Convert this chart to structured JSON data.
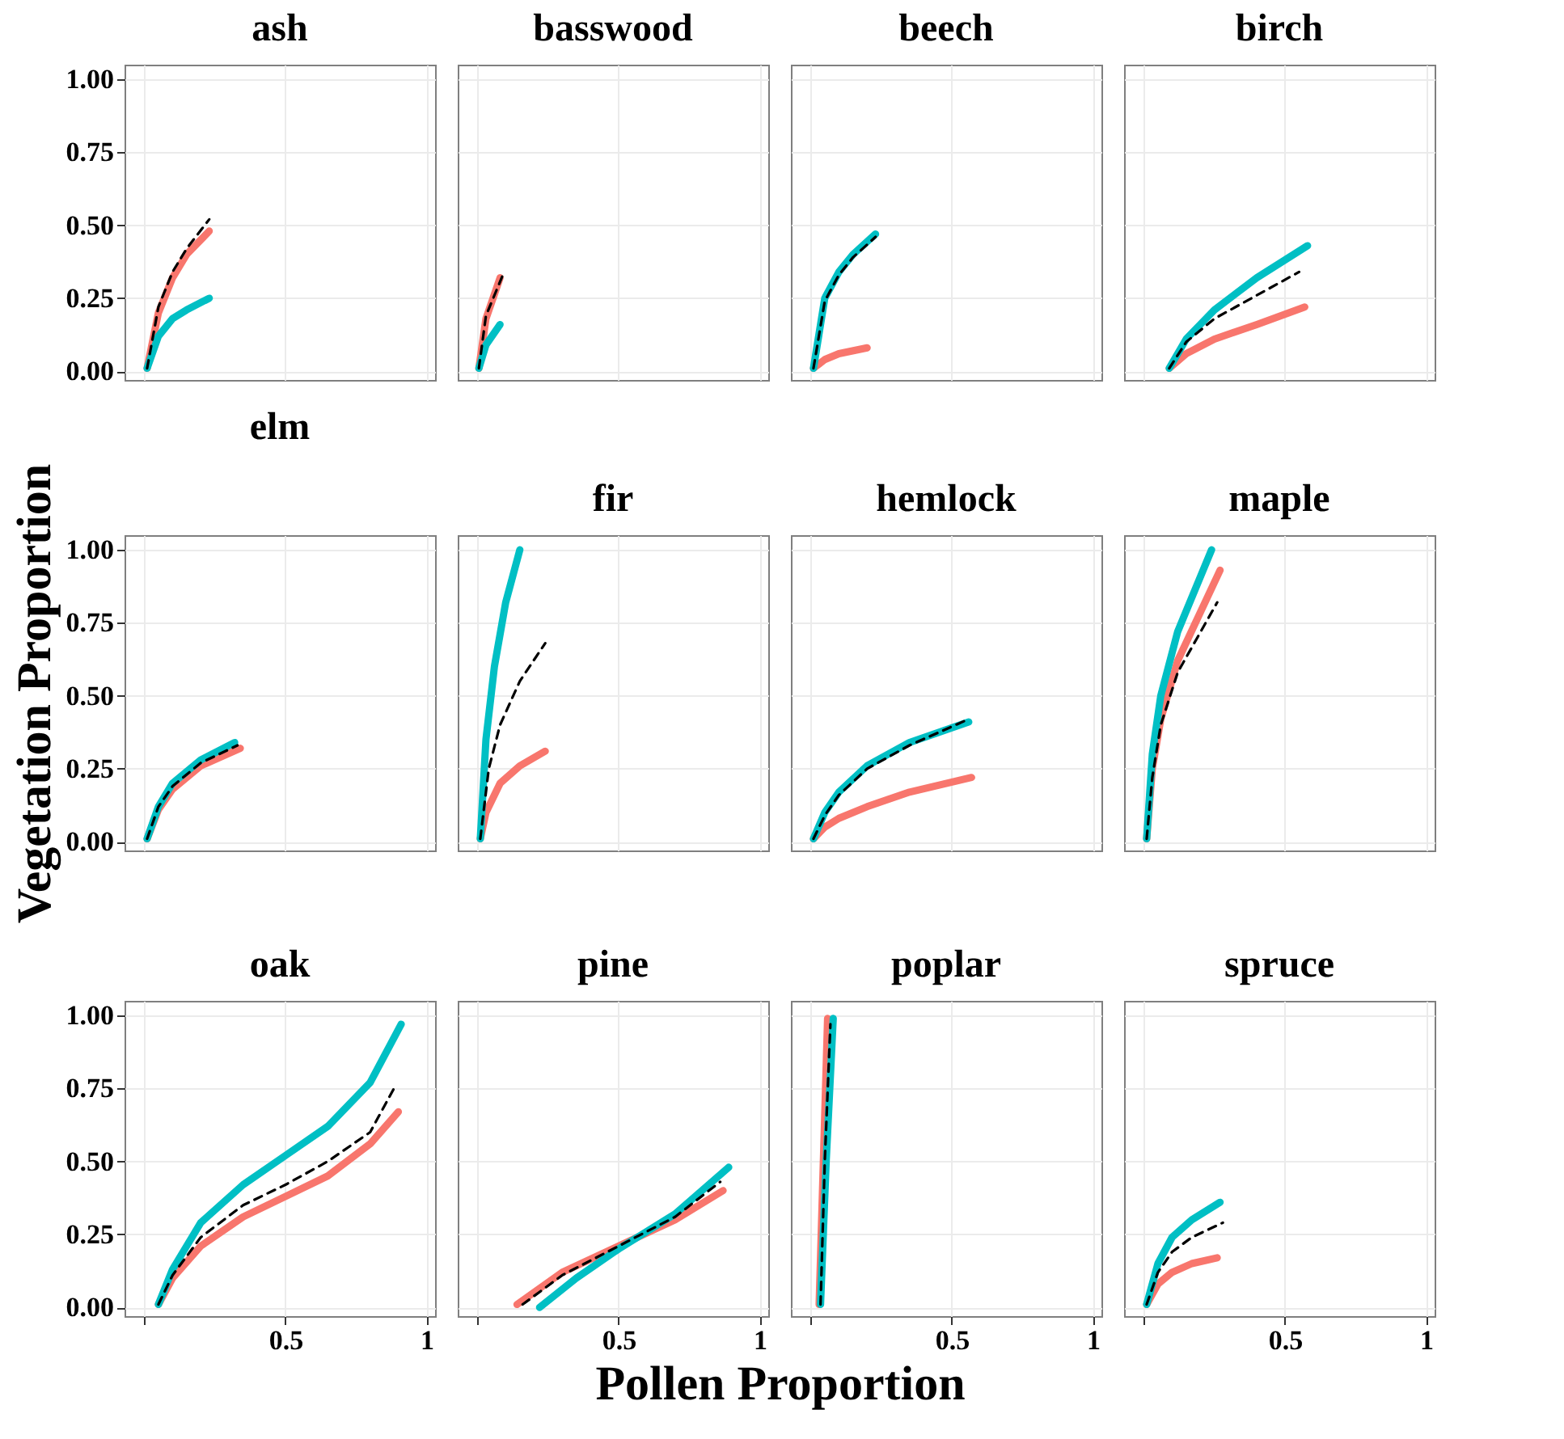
{
  "chart_data": [
    {
      "type": "line",
      "title": "ash",
      "xlim": [
        -0.07,
        1.03
      ],
      "ylim": [
        -0.03,
        1.05
      ],
      "xticks": [
        {
          "value": 0,
          "label": null
        },
        {
          "value": 0.5,
          "label": null
        },
        {
          "value": 1,
          "label": null
        }
      ],
      "yticks": [
        {
          "value": 0,
          "label": "0.00"
        },
        {
          "value": 0.25,
          "label": "0.25"
        },
        {
          "value": 0.5,
          "label": "0.50"
        },
        {
          "value": 0.75,
          "label": "0.75"
        },
        {
          "value": 1,
          "label": "1.00"
        }
      ],
      "grid": true,
      "tick_labels": "y",
      "series": [
        {
          "color": "#f8766d",
          "x": [
            0.01,
            0.05,
            0.1,
            0.15,
            0.23
          ],
          "values": [
            0.01,
            0.2,
            0.32,
            0.4,
            0.48
          ]
        },
        {
          "color": "#00bfc4",
          "x": [
            0.01,
            0.05,
            0.1,
            0.15,
            0.23
          ],
          "values": [
            0.01,
            0.12,
            0.18,
            0.21,
            0.25
          ]
        },
        {
          "color": "#000000",
          "line_style": "dashed",
          "x": [
            0.01,
            0.05,
            0.1,
            0.15,
            0.23
          ],
          "values": [
            0.01,
            0.22,
            0.34,
            0.42,
            0.52
          ]
        }
      ]
    },
    {
      "type": "line",
      "title": "basswood",
      "xlim": [
        -0.07,
        1.03
      ],
      "ylim": [
        -0.03,
        1.05
      ],
      "xticks": [
        {
          "value": 0,
          "label": null
        },
        {
          "value": 0.5,
          "label": null
        },
        {
          "value": 1,
          "label": null
        }
      ],
      "yticks": [
        {
          "value": 0,
          "label": null
        },
        {
          "value": 0.25,
          "label": null
        },
        {
          "value": 0.5,
          "label": null
        },
        {
          "value": 0.75,
          "label": null
        },
        {
          "value": 1,
          "label": null
        }
      ],
      "grid": true,
      "tick_labels": false,
      "series": [
        {
          "color": "#f8766d",
          "x": [
            0.005,
            0.03,
            0.08
          ],
          "values": [
            0.01,
            0.18,
            0.32
          ]
        },
        {
          "color": "#00bfc4",
          "x": [
            0.005,
            0.03,
            0.08
          ],
          "values": [
            0.01,
            0.09,
            0.16
          ]
        },
        {
          "color": "#000000",
          "line_style": "dashed",
          "x": [
            0.005,
            0.03,
            0.09
          ],
          "values": [
            0.01,
            0.19,
            0.33
          ]
        }
      ]
    },
    {
      "type": "line",
      "title": "beech",
      "xlim": [
        -0.07,
        1.03
      ],
      "ylim": [
        -0.03,
        1.05
      ],
      "xticks": [
        {
          "value": 0,
          "label": null
        },
        {
          "value": 0.5,
          "label": null
        },
        {
          "value": 1,
          "label": null
        }
      ],
      "yticks": [
        {
          "value": 0,
          "label": null
        },
        {
          "value": 0.25,
          "label": null
        },
        {
          "value": 0.5,
          "label": null
        },
        {
          "value": 0.75,
          "label": null
        },
        {
          "value": 1,
          "label": null
        }
      ],
      "grid": true,
      "tick_labels": false,
      "series": [
        {
          "color": "#f8766d",
          "x": [
            0.01,
            0.05,
            0.1,
            0.2
          ],
          "values": [
            0.01,
            0.04,
            0.06,
            0.08
          ]
        },
        {
          "color": "#00bfc4",
          "x": [
            0.01,
            0.05,
            0.1,
            0.15,
            0.23
          ],
          "values": [
            0.01,
            0.25,
            0.34,
            0.4,
            0.47
          ]
        },
        {
          "color": "#000000",
          "line_style": "dashed",
          "x": [
            0.01,
            0.05,
            0.1,
            0.15,
            0.23
          ],
          "values": [
            0.01,
            0.24,
            0.33,
            0.39,
            0.46
          ]
        }
      ]
    },
    {
      "type": "line",
      "title": "birch",
      "xlim": [
        -0.07,
        1.03
      ],
      "ylim": [
        -0.03,
        1.05
      ],
      "xticks": [
        {
          "value": 0,
          "label": null
        },
        {
          "value": 0.5,
          "label": null
        },
        {
          "value": 1,
          "label": null
        }
      ],
      "yticks": [
        {
          "value": 0,
          "label": null
        },
        {
          "value": 0.25,
          "label": null
        },
        {
          "value": 0.5,
          "label": null
        },
        {
          "value": 0.75,
          "label": null
        },
        {
          "value": 1,
          "label": null
        }
      ],
      "grid": true,
      "tick_labels": false,
      "series": [
        {
          "color": "#f8766d",
          "x": [
            0.09,
            0.15,
            0.25,
            0.4,
            0.57
          ],
          "values": [
            0.01,
            0.06,
            0.11,
            0.16,
            0.22
          ]
        },
        {
          "color": "#00bfc4",
          "x": [
            0.09,
            0.15,
            0.25,
            0.4,
            0.58
          ],
          "values": [
            0.01,
            0.11,
            0.21,
            0.32,
            0.43
          ]
        },
        {
          "color": "#000000",
          "line_style": "dashed",
          "x": [
            0.09,
            0.15,
            0.25,
            0.4,
            0.55
          ],
          "values": [
            0.01,
            0.1,
            0.18,
            0.26,
            0.34
          ]
        }
      ]
    },
    {
      "type": "line",
      "title": "elm",
      "ylabel": "Vegetation Proportion",
      "xlim": [
        -0.07,
        1.03
      ],
      "ylim": [
        -0.03,
        1.05
      ],
      "xticks": [
        {
          "value": 0,
          "label": null
        },
        {
          "value": 0.5,
          "label": null
        },
        {
          "value": 1,
          "label": null
        }
      ],
      "yticks": [
        {
          "value": 0,
          "label": "0.00"
        },
        {
          "value": 0.25,
          "label": "0.25"
        },
        {
          "value": 0.5,
          "label": "0.50"
        },
        {
          "value": 0.75,
          "label": "0.75"
        },
        {
          "value": 1,
          "label": "1.00"
        }
      ],
      "grid": true,
      "tick_labels": "y",
      "series": [
        {
          "color": "#f8766d",
          "x": [
            0.01,
            0.05,
            0.1,
            0.2,
            0.34
          ],
          "values": [
            0.01,
            0.11,
            0.18,
            0.26,
            0.32
          ]
        },
        {
          "color": "#00bfc4",
          "x": [
            0.01,
            0.05,
            0.1,
            0.2,
            0.32
          ],
          "values": [
            0.01,
            0.12,
            0.2,
            0.28,
            0.34
          ]
        },
        {
          "color": "#000000",
          "line_style": "dashed",
          "x": [
            0.01,
            0.05,
            0.1,
            0.2,
            0.33
          ],
          "values": [
            0.01,
            0.12,
            0.19,
            0.27,
            0.33
          ]
        }
      ]
    },
    {
      "type": "line",
      "title": "fir",
      "xlim": [
        -0.07,
        1.03
      ],
      "ylim": [
        -0.03,
        1.05
      ],
      "xticks": [
        {
          "value": 0,
          "label": null
        },
        {
          "value": 0.5,
          "label": null
        },
        {
          "value": 1,
          "label": null
        }
      ],
      "yticks": [
        {
          "value": 0,
          "label": null
        },
        {
          "value": 0.25,
          "label": null
        },
        {
          "value": 0.5,
          "label": null
        },
        {
          "value": 0.75,
          "label": null
        },
        {
          "value": 1,
          "label": null
        }
      ],
      "grid": true,
      "tick_labels": false,
      "series": [
        {
          "color": "#f8766d",
          "x": [
            0.01,
            0.03,
            0.08,
            0.15,
            0.24
          ],
          "values": [
            0.01,
            0.1,
            0.2,
            0.26,
            0.31
          ]
        },
        {
          "color": "#00bfc4",
          "x": [
            0.01,
            0.03,
            0.06,
            0.1,
            0.15
          ],
          "values": [
            0.01,
            0.35,
            0.6,
            0.82,
            1.0
          ]
        },
        {
          "color": "#000000",
          "line_style": "dashed",
          "x": [
            0.01,
            0.04,
            0.08,
            0.15,
            0.24
          ],
          "values": [
            0.01,
            0.25,
            0.4,
            0.55,
            0.68
          ]
        }
      ]
    },
    {
      "type": "line",
      "title": "hemlock",
      "xlim": [
        -0.07,
        1.03
      ],
      "ylim": [
        -0.03,
        1.05
      ],
      "xticks": [
        {
          "value": 0,
          "label": null
        },
        {
          "value": 0.5,
          "label": null
        },
        {
          "value": 1,
          "label": null
        }
      ],
      "yticks": [
        {
          "value": 0,
          "label": null
        },
        {
          "value": 0.25,
          "label": null
        },
        {
          "value": 0.5,
          "label": null
        },
        {
          "value": 0.75,
          "label": null
        },
        {
          "value": 1,
          "label": null
        }
      ],
      "grid": true,
      "tick_labels": false,
      "series": [
        {
          "color": "#f8766d",
          "x": [
            0.01,
            0.05,
            0.1,
            0.2,
            0.35,
            0.57
          ],
          "values": [
            0.01,
            0.05,
            0.08,
            0.12,
            0.17,
            0.22
          ]
        },
        {
          "color": "#00bfc4",
          "x": [
            0.01,
            0.05,
            0.1,
            0.2,
            0.35,
            0.56
          ],
          "values": [
            0.01,
            0.1,
            0.17,
            0.26,
            0.34,
            0.41
          ]
        },
        {
          "color": "#000000",
          "line_style": "dashed",
          "x": [
            0.01,
            0.05,
            0.1,
            0.2,
            0.35,
            0.56
          ],
          "values": [
            0.01,
            0.09,
            0.16,
            0.25,
            0.33,
            0.42
          ]
        }
      ]
    },
    {
      "type": "line",
      "title": "maple",
      "xlim": [
        -0.07,
        1.03
      ],
      "ylim": [
        -0.03,
        1.05
      ],
      "xticks": [
        {
          "value": 0,
          "label": null
        },
        {
          "value": 0.5,
          "label": null
        },
        {
          "value": 1,
          "label": null
        }
      ],
      "yticks": [
        {
          "value": 0,
          "label": null
        },
        {
          "value": 0.25,
          "label": null
        },
        {
          "value": 0.5,
          "label": null
        },
        {
          "value": 0.75,
          "label": null
        },
        {
          "value": 1,
          "label": null
        }
      ],
      "grid": true,
      "tick_labels": false,
      "series": [
        {
          "color": "#f8766d",
          "x": [
            0.01,
            0.03,
            0.06,
            0.12,
            0.27
          ],
          "values": [
            0.01,
            0.25,
            0.42,
            0.62,
            0.93
          ]
        },
        {
          "color": "#00bfc4",
          "x": [
            0.01,
            0.03,
            0.06,
            0.12,
            0.24
          ],
          "values": [
            0.01,
            0.3,
            0.5,
            0.72,
            1.0
          ]
        },
        {
          "color": "#000000",
          "line_style": "dashed",
          "x": [
            0.01,
            0.03,
            0.06,
            0.12,
            0.26
          ],
          "values": [
            0.01,
            0.22,
            0.4,
            0.58,
            0.82
          ]
        }
      ]
    },
    {
      "type": "line",
      "title": "oak",
      "xlim": [
        -0.07,
        1.03
      ],
      "ylim": [
        -0.03,
        1.05
      ],
      "xticks": [
        {
          "value": 0,
          "label": null
        },
        {
          "value": 0.5,
          "label": "0.5"
        },
        {
          "value": 1,
          "label": "1"
        }
      ],
      "yticks": [
        {
          "value": 0,
          "label": "0.00"
        },
        {
          "value": 0.25,
          "label": "0.25"
        },
        {
          "value": 0.5,
          "label": "0.50"
        },
        {
          "value": 0.75,
          "label": "0.75"
        },
        {
          "value": 1,
          "label": "1.00"
        }
      ],
      "grid": true,
      "series": [
        {
          "color": "#f8766d",
          "x": [
            0.05,
            0.1,
            0.2,
            0.35,
            0.5,
            0.65,
            0.8,
            0.9
          ],
          "values": [
            0.01,
            0.1,
            0.21,
            0.31,
            0.38,
            0.45,
            0.56,
            0.67
          ]
        },
        {
          "color": "#00bfc4",
          "x": [
            0.05,
            0.1,
            0.2,
            0.35,
            0.5,
            0.65,
            0.8,
            0.91
          ],
          "values": [
            0.01,
            0.13,
            0.29,
            0.42,
            0.52,
            0.62,
            0.77,
            0.97
          ]
        },
        {
          "color": "#000000",
          "line_style": "dashed",
          "x": [
            0.05,
            0.1,
            0.2,
            0.35,
            0.5,
            0.65,
            0.8,
            0.89
          ],
          "values": [
            0.01,
            0.11,
            0.24,
            0.35,
            0.42,
            0.5,
            0.6,
            0.76
          ]
        }
      ]
    },
    {
      "type": "line",
      "title": "pine",
      "xlabel": "Pollen Proportion",
      "xlim": [
        -0.07,
        1.03
      ],
      "ylim": [
        -0.03,
        1.05
      ],
      "xticks": [
        {
          "value": 0,
          "label": null
        },
        {
          "value": 0.5,
          "label": "0.5"
        },
        {
          "value": 1,
          "label": "1"
        }
      ],
      "yticks": [
        {
          "value": 0,
          "label": null
        },
        {
          "value": 0.25,
          "label": null
        },
        {
          "value": 0.5,
          "label": null
        },
        {
          "value": 0.75,
          "label": null
        },
        {
          "value": 1,
          "label": null
        }
      ],
      "grid": true,
      "tick_labels": "x",
      "series": [
        {
          "color": "#f8766d",
          "x": [
            0.14,
            0.3,
            0.5,
            0.7,
            0.87
          ],
          "values": [
            0.01,
            0.12,
            0.21,
            0.3,
            0.4
          ]
        },
        {
          "color": "#00bfc4",
          "x": [
            0.22,
            0.35,
            0.5,
            0.7,
            0.89
          ],
          "values": [
            0.0,
            0.1,
            0.2,
            0.32,
            0.48
          ]
        },
        {
          "color": "#000000",
          "line_style": "dashed",
          "x": [
            0.16,
            0.3,
            0.5,
            0.7,
            0.86
          ],
          "values": [
            0.01,
            0.11,
            0.21,
            0.31,
            0.43
          ]
        }
      ]
    },
    {
      "type": "line",
      "title": "poplar",
      "xlim": [
        -0.07,
        1.03
      ],
      "ylim": [
        -0.03,
        1.05
      ],
      "xticks": [
        {
          "value": 0,
          "label": null
        },
        {
          "value": 0.5,
          "label": "0.5"
        },
        {
          "value": 1,
          "label": "1"
        }
      ],
      "yticks": [
        {
          "value": 0,
          "label": null
        },
        {
          "value": 0.25,
          "label": null
        },
        {
          "value": 0.5,
          "label": null
        },
        {
          "value": 0.75,
          "label": null
        },
        {
          "value": 1,
          "label": null
        }
      ],
      "grid": true,
      "tick_labels": "x",
      "series": [
        {
          "color": "#f8766d",
          "x": [
            0.03,
            0.045,
            0.06
          ],
          "values": [
            0.01,
            0.5,
            0.99
          ]
        },
        {
          "color": "#00bfc4",
          "x": [
            0.035,
            0.055,
            0.08
          ],
          "values": [
            0.01,
            0.5,
            0.99
          ]
        },
        {
          "color": "#000000",
          "line_style": "dashed",
          "x": [
            0.035,
            0.05,
            0.07
          ],
          "values": [
            0.01,
            0.5,
            0.97
          ]
        }
      ]
    },
    {
      "type": "line",
      "title": "spruce",
      "xlim": [
        -0.07,
        1.03
      ],
      "ylim": [
        -0.03,
        1.05
      ],
      "xticks": [
        {
          "value": 0,
          "label": null
        },
        {
          "value": 0.5,
          "label": "0.5"
        },
        {
          "value": 1,
          "label": "1"
        }
      ],
      "yticks": [
        {
          "value": 0,
          "label": null
        },
        {
          "value": 0.25,
          "label": null
        },
        {
          "value": 0.5,
          "label": null
        },
        {
          "value": 0.75,
          "label": null
        },
        {
          "value": 1,
          "label": null
        }
      ],
      "grid": true,
      "tick_labels": "x",
      "series": [
        {
          "color": "#f8766d",
          "x": [
            0.01,
            0.05,
            0.1,
            0.17,
            0.26
          ],
          "values": [
            0.01,
            0.08,
            0.12,
            0.15,
            0.17
          ]
        },
        {
          "color": "#00bfc4",
          "x": [
            0.01,
            0.05,
            0.1,
            0.17,
            0.27
          ],
          "values": [
            0.01,
            0.15,
            0.24,
            0.3,
            0.36
          ]
        },
        {
          "color": "#000000",
          "line_style": "dashed",
          "x": [
            0.01,
            0.05,
            0.1,
            0.17,
            0.28
          ],
          "values": [
            0.01,
            0.12,
            0.19,
            0.24,
            0.29
          ]
        }
      ]
    }
  ]
}
